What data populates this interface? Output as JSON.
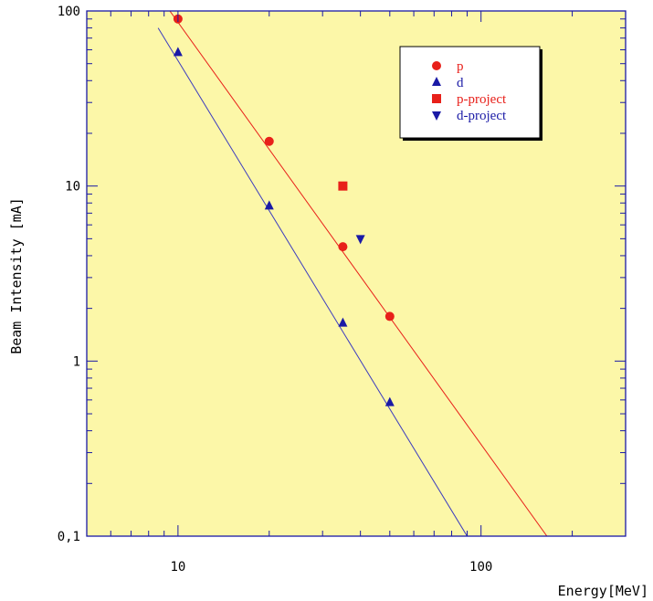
{
  "chart_data": {
    "type": "scatter",
    "xlabel": "Energy[MeV]",
    "ylabel": "Beam Intensity [mA]",
    "xscale": "log",
    "yscale": "log",
    "xlim": [
      5,
      300
    ],
    "ylim": [
      0.1,
      100
    ],
    "x_ticks": [
      10,
      100
    ],
    "x_tick_labels": [
      "10",
      "100"
    ],
    "y_ticks": [
      0.1,
      1,
      10,
      100
    ],
    "y_tick_labels": [
      "0,1",
      "1",
      "10",
      "100"
    ],
    "grid": false,
    "legend_position": "top-right",
    "background_color": "#fcf7a8",
    "series": [
      {
        "name": "p",
        "marker": "circle",
        "color": "#e8201a",
        "x": [
          10,
          20,
          35,
          50
        ],
        "y": [
          90,
          18,
          4.5,
          1.8
        ]
      },
      {
        "name": "d",
        "marker": "triangle-up",
        "color": "#1a1aa6",
        "x": [
          10,
          20,
          35,
          50
        ],
        "y": [
          58,
          7.7,
          1.65,
          0.58
        ]
      },
      {
        "name": "p-project",
        "marker": "square",
        "color": "#e8201a",
        "x": [
          35
        ],
        "y": [
          10
        ]
      },
      {
        "name": "d-project",
        "marker": "triangle-down",
        "color": "#1a1aa6",
        "x": [
          40
        ],
        "y": [
          5
        ]
      }
    ],
    "fit_lines": [
      {
        "series": "p",
        "color": "#e8201a",
        "x": [
          9.4,
          165
        ],
        "y": [
          100,
          0.1
        ]
      },
      {
        "series": "d",
        "color": "#3b3bbf",
        "x": [
          8.6,
          90
        ],
        "y": [
          80,
          0.1
        ]
      }
    ]
  }
}
